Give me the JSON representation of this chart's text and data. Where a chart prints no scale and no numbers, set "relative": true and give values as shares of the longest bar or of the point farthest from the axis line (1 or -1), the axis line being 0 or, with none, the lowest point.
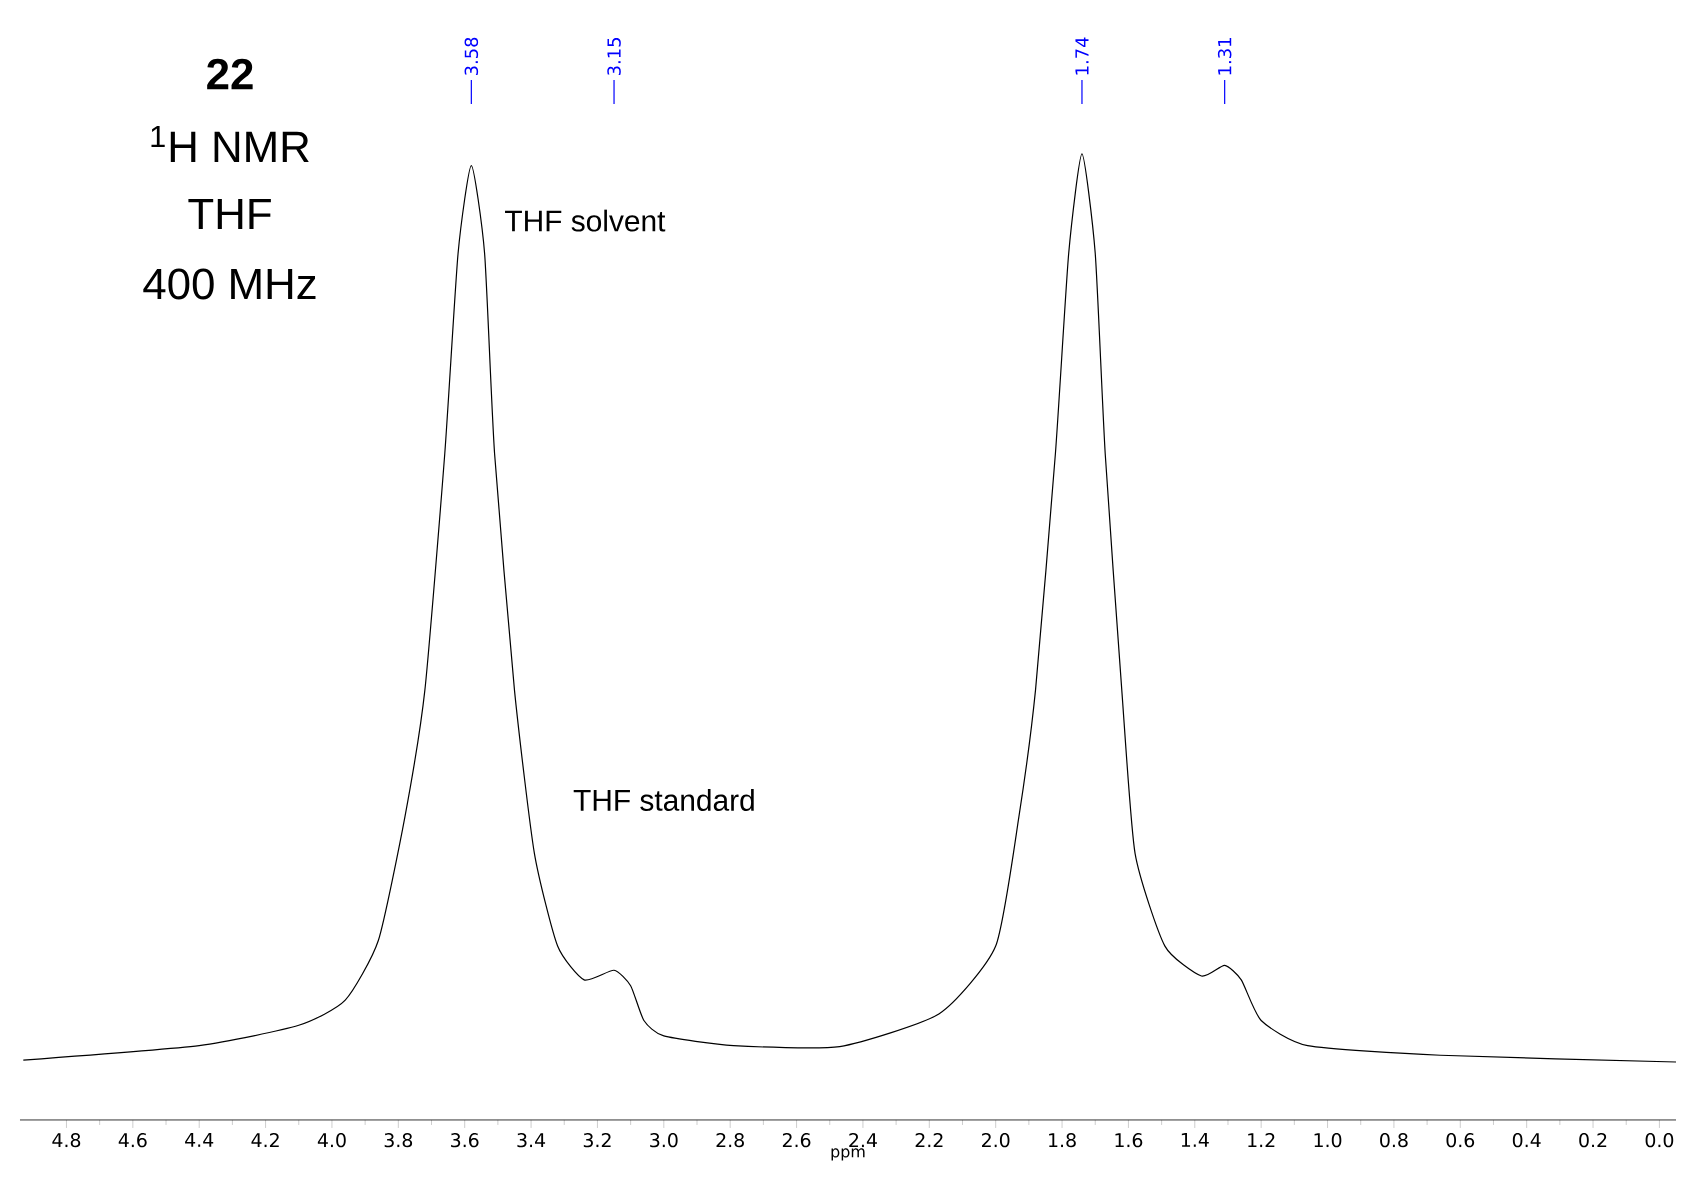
{
  "chart_data": {
    "type": "line",
    "relative": true,
    "title": "22",
    "subtitle": "$^{1}$H NMR",
    "xlabel": "ppm",
    "x": [
      4.93,
      4.4,
      4.1,
      3.96,
      3.86,
      3.78,
      3.72,
      3.66,
      3.62,
      3.58,
      3.54,
      3.51,
      3.45,
      3.39,
      3.32,
      3.24,
      3.15,
      3.1,
      3.06,
      3.0,
      2.79,
      2.47,
      2.17,
      2.0,
      1.93,
      1.88,
      1.82,
      1.78,
      1.74,
      1.7,
      1.67,
      1.62,
      1.58,
      1.49,
      1.38,
      1.31,
      1.26,
      1.2,
      1.06,
      0.66,
      -0.05
    ],
    "values": [
      0.062,
      0.077,
      0.098,
      0.124,
      0.186,
      0.314,
      0.445,
      0.69,
      0.897,
      0.988,
      0.897,
      0.69,
      0.445,
      0.276,
      0.18,
      0.145,
      0.155,
      0.139,
      0.103,
      0.087,
      0.077,
      0.076,
      0.11,
      0.18,
      0.314,
      0.445,
      0.69,
      0.897,
      1.0,
      0.897,
      0.69,
      0.445,
      0.276,
      0.18,
      0.149,
      0.16,
      0.145,
      0.103,
      0.077,
      0.067,
      0.06
    ],
    "color": "#000000",
    "xlim": [
      4.94,
      -0.05
    ],
    "xticks": [
      {
        "value": 4.8,
        "label": "4.8"
      },
      {
        "value": 4.6,
        "label": "4.6"
      },
      {
        "value": 4.4,
        "label": "4.4"
      },
      {
        "value": 4.2,
        "label": "4.2"
      },
      {
        "value": 4.0,
        "label": "4.0"
      },
      {
        "value": 3.8,
        "label": "3.8"
      },
      {
        "value": 3.6,
        "label": "3.6"
      },
      {
        "value": 3.4,
        "label": "3.4"
      },
      {
        "value": 3.2,
        "label": "3.2"
      },
      {
        "value": 3.0,
        "label": "3.0"
      },
      {
        "value": 2.8,
        "label": "2.8"
      },
      {
        "value": 2.6,
        "label": "2.6"
      },
      {
        "value": 2.4,
        "label": "2.4"
      },
      {
        "value": 2.2,
        "label": "2.2"
      },
      {
        "value": 2.0,
        "label": "2.0"
      },
      {
        "value": 1.8,
        "label": "1.8"
      },
      {
        "value": 1.6,
        "label": "1.6"
      },
      {
        "value": 1.4,
        "label": "1.4"
      },
      {
        "value": 1.2,
        "label": "1.2"
      },
      {
        "value": 1.0,
        "label": "1.0"
      },
      {
        "value": 0.8,
        "label": "0.8"
      },
      {
        "value": 0.6,
        "label": "0.6"
      },
      {
        "value": 0.4,
        "label": "0.4"
      },
      {
        "value": 0.2,
        "label": "0.2"
      },
      {
        "value": 0.0,
        "label": "0.0"
      }
    ],
    "annotations": [
      "THF",
      "400 MHz",
      {
        "text": "3.58",
        "x": 3.58
      },
      {
        "text": "3.15",
        "x": 3.15
      },
      {
        "text": "1.74",
        "x": 1.74
      },
      {
        "text": "1.31",
        "x": 1.31
      },
      {
        "text": "THF solvent",
        "x": 3.58,
        "y": 0.931
      },
      "THF standard"
    ]
  }
}
